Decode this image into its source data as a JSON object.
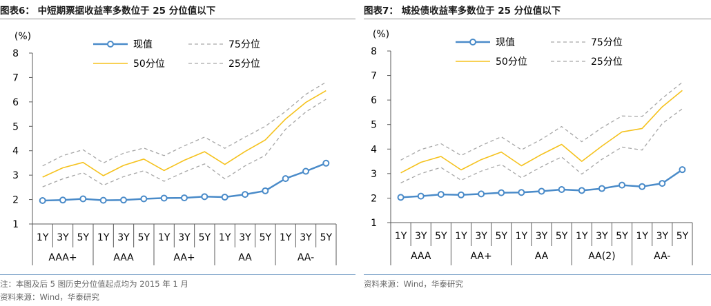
{
  "charts": [
    {
      "title": "图表6：  中短期票据收益率多数位于 25 分位值以下",
      "notes": [
        "注：本图及后 5 图历史分位值起点均为 2015 年 1 月",
        "资料来源：Wind，华泰研究"
      ],
      "chart_data": {
        "type": "line",
        "title": "中短期票据收益率多数位于 25 分位值以下",
        "ylabel": "(%)",
        "ylim": [
          1,
          8
        ],
        "yticks": [
          "1",
          "2",
          "3",
          "4",
          "5",
          "6",
          "7",
          "8"
        ],
        "groups": [
          "AAA+",
          "AAA",
          "AA+",
          "AA",
          "AA-"
        ],
        "tenors": [
          "1Y",
          "3Y",
          "5Y"
        ],
        "series": [
          {
            "name": "现值",
            "values": [
              1.96,
              1.98,
              2.03,
              1.97,
              1.98,
              2.03,
              2.06,
              2.07,
              2.12,
              2.1,
              2.21,
              2.36,
              2.86,
              3.16,
              3.49
            ]
          },
          {
            "name": "75分位",
            "values": [
              3.38,
              3.8,
              4.04,
              3.5,
              3.9,
              4.11,
              3.8,
              4.2,
              4.56,
              4.1,
              4.56,
              5.0,
              5.61,
              6.31,
              6.81
            ]
          },
          {
            "name": "50分位",
            "values": [
              2.92,
              3.3,
              3.52,
              2.98,
              3.4,
              3.66,
              3.19,
              3.61,
              3.96,
              3.44,
              3.97,
              4.44,
              5.3,
              5.98,
              6.46
            ]
          },
          {
            "name": "25分位",
            "values": [
              2.52,
              2.85,
              3.1,
              2.59,
              2.94,
              3.18,
              2.75,
              3.13,
              3.46,
              2.85,
              3.38,
              3.81,
              4.88,
              5.59,
              6.11
            ]
          }
        ]
      }
    },
    {
      "title": "图表7：  城投债收益率多数位于 25 分位值以下",
      "notes": [
        "资料来源：Wind，华泰研究"
      ],
      "chart_data": {
        "type": "line",
        "title": "城投债收益率多数位于 25 分位值以下",
        "ylabel": "(%)",
        "ylim": [
          1,
          8
        ],
        "yticks": [
          "1",
          "2",
          "3",
          "4",
          "5",
          "6",
          "7",
          "8"
        ],
        "groups": [
          "AAA",
          "AA+",
          "AA",
          "AA(2)",
          "AA-"
        ],
        "tenors": [
          "1Y",
          "3Y",
          "5Y"
        ],
        "series": [
          {
            "name": "现值",
            "values": [
              2.03,
              2.08,
              2.15,
              2.13,
              2.17,
              2.22,
              2.23,
              2.28,
              2.35,
              2.31,
              2.39,
              2.53,
              2.47,
              2.6,
              3.16
            ]
          },
          {
            "name": "75分位",
            "values": [
              3.55,
              3.98,
              4.22,
              3.74,
              4.14,
              4.5,
              3.97,
              4.4,
              4.92,
              4.3,
              4.87,
              5.35,
              5.33,
              6.07,
              6.72
            ]
          },
          {
            "name": "50分位",
            "values": [
              3.03,
              3.46,
              3.7,
              3.15,
              3.57,
              3.88,
              3.32,
              3.78,
              4.19,
              3.5,
              4.12,
              4.7,
              4.84,
              5.72,
              6.39
            ]
          },
          {
            "name": "25分位",
            "values": [
              2.62,
              3.0,
              3.25,
              2.73,
              3.1,
              3.37,
              2.83,
              3.28,
              3.68,
              2.98,
              3.58,
              4.08,
              3.96,
              5.04,
              5.64
            ]
          }
        ]
      }
    }
  ],
  "colors": {
    "current": "#4a8bc9",
    "p50": "#f5c21d",
    "quartile": "#a6a6a6",
    "axis": "#595959",
    "title_rule": "#8c8c8c",
    "note_rule": "#7aa0c8"
  }
}
